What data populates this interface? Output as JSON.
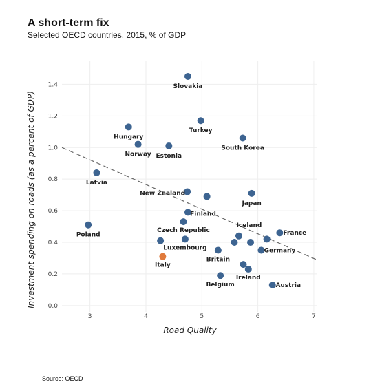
{
  "title": "A short-term fix",
  "subtitle": "Selected OECD countries, 2015, % of GDP",
  "source": "Source: OECD",
  "colors": {
    "default": "#3d6491",
    "highlight": "#e07a3c",
    "trend": "#666666",
    "grid": "#eeeeee"
  },
  "chart_data": {
    "type": "scatter",
    "xlabel": "Road Quality",
    "ylabel": "Investment spending on roads (as a percent of GDP)",
    "xlim": [
      2.5,
      7.05
    ],
    "ylim": [
      -0.04,
      1.55
    ],
    "xticks": [
      "3",
      "4",
      "5",
      "6",
      "7"
    ],
    "yticks": [
      "0.0",
      "0.2",
      "0.4",
      "0.6",
      "0.8",
      "1.0",
      "1.2",
      "1.4"
    ],
    "grid": true,
    "trendline": {
      "x": [
        2.5,
        7.05
      ],
      "y": [
        1.0,
        0.29
      ],
      "style": "dashed"
    },
    "points": [
      {
        "label": "Slovakia",
        "x": 4.75,
        "y": 1.45
      },
      {
        "label": "Turkey",
        "x": 4.98,
        "y": 1.17
      },
      {
        "label": "Hungary",
        "x": 3.69,
        "y": 1.13
      },
      {
        "label": "Norway",
        "x": 3.86,
        "y": 1.02
      },
      {
        "label": "Estonia",
        "x": 4.41,
        "y": 1.01
      },
      {
        "label": "South Korea",
        "x": 5.73,
        "y": 1.06
      },
      {
        "label": "Latvia",
        "x": 3.12,
        "y": 0.84
      },
      {
        "label": "New Zealand",
        "x": 4.74,
        "y": 0.72
      },
      {
        "label": "",
        "x": 5.09,
        "y": 0.69
      },
      {
        "label": "Japan",
        "x": 5.89,
        "y": 0.71
      },
      {
        "label": "Finland",
        "x": 4.75,
        "y": 0.59
      },
      {
        "label": "Poland",
        "x": 2.97,
        "y": 0.51
      },
      {
        "label": "Czech Republic",
        "x": 4.67,
        "y": 0.53
      },
      {
        "label": "Iceland",
        "x": 5.66,
        "y": 0.44
      },
      {
        "label": "France",
        "x": 6.39,
        "y": 0.46
      },
      {
        "label": "",
        "x": 6.16,
        "y": 0.42
      },
      {
        "label": "",
        "x": 4.26,
        "y": 0.41
      },
      {
        "label": "Luxembourg",
        "x": 4.7,
        "y": 0.42
      },
      {
        "label": "",
        "x": 5.58,
        "y": 0.4
      },
      {
        "label": "",
        "x": 5.87,
        "y": 0.4
      },
      {
        "label": "Germany",
        "x": 6.06,
        "y": 0.35
      },
      {
        "label": "Britain",
        "x": 5.29,
        "y": 0.35
      },
      {
        "label": "Italy",
        "x": 4.3,
        "y": 0.31,
        "highlight": true
      },
      {
        "label": "",
        "x": 5.74,
        "y": 0.26
      },
      {
        "label": "Ireland",
        "x": 5.83,
        "y": 0.23
      },
      {
        "label": "Belgium",
        "x": 5.33,
        "y": 0.19
      },
      {
        "label": "Austria",
        "x": 6.26,
        "y": 0.13
      }
    ]
  }
}
